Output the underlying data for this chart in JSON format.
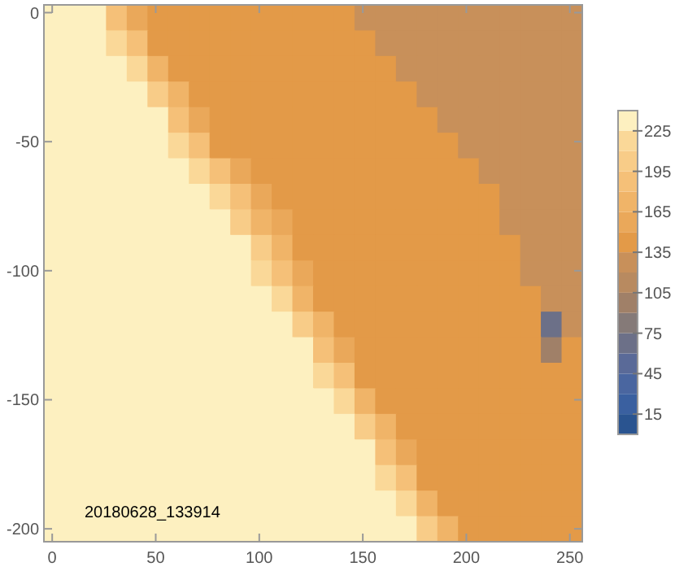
{
  "chart_data": {
    "type": "heatmap",
    "annotations": [
      "20180628_133914"
    ],
    "xlim": [
      -4,
      256
    ],
    "ylim": [
      -205,
      3
    ],
    "xticks": [
      0,
      50,
      100,
      150,
      200,
      250
    ],
    "yticks": [
      0,
      -50,
      -100,
      -150,
      -200
    ],
    "clim": [
      0,
      240
    ],
    "cticks": [
      15,
      45,
      75,
      105,
      135,
      165,
      195,
      225
    ],
    "cells": [
      [
        235,
        235,
        235,
        190,
        150,
        142,
        142,
        142,
        142,
        142,
        142,
        142,
        142,
        142,
        142,
        128,
        128,
        128,
        128,
        128,
        128,
        128,
        128,
        128,
        128,
        128
      ],
      [
        235,
        235,
        235,
        220,
        180,
        148,
        142,
        142,
        142,
        142,
        142,
        142,
        142,
        142,
        142,
        142,
        128,
        128,
        128,
        128,
        128,
        128,
        128,
        128,
        128,
        128
      ],
      [
        235,
        235,
        235,
        235,
        210,
        170,
        145,
        142,
        142,
        142,
        142,
        142,
        142,
        142,
        142,
        142,
        142,
        128,
        128,
        128,
        128,
        128,
        128,
        128,
        128,
        128
      ],
      [
        235,
        235,
        235,
        235,
        235,
        200,
        165,
        145,
        142,
        142,
        142,
        142,
        142,
        142,
        142,
        142,
        142,
        142,
        128,
        128,
        128,
        128,
        128,
        128,
        128,
        128
      ],
      [
        235,
        235,
        235,
        235,
        235,
        235,
        190,
        155,
        145,
        142,
        142,
        142,
        142,
        142,
        142,
        142,
        142,
        142,
        142,
        128,
        128,
        128,
        128,
        128,
        128,
        128
      ],
      [
        235,
        235,
        235,
        235,
        235,
        235,
        220,
        185,
        148,
        145,
        142,
        142,
        142,
        142,
        142,
        142,
        142,
        142,
        142,
        142,
        128,
        128,
        128,
        128,
        128,
        128
      ],
      [
        235,
        235,
        235,
        235,
        235,
        235,
        235,
        215,
        185,
        155,
        145,
        142,
        142,
        142,
        142,
        142,
        142,
        142,
        142,
        142,
        142,
        128,
        128,
        128,
        128,
        128
      ],
      [
        235,
        235,
        235,
        235,
        235,
        235,
        235,
        235,
        210,
        180,
        150,
        145,
        142,
        142,
        142,
        142,
        142,
        142,
        142,
        142,
        142,
        142,
        128,
        128,
        128,
        128
      ],
      [
        235,
        235,
        235,
        235,
        235,
        235,
        235,
        235,
        235,
        200,
        170,
        150,
        145,
        142,
        142,
        142,
        142,
        142,
        142,
        142,
        142,
        142,
        128,
        128,
        128,
        128
      ],
      [
        235,
        235,
        235,
        235,
        235,
        235,
        235,
        235,
        235,
        228,
        195,
        165,
        148,
        145,
        142,
        142,
        142,
        142,
        142,
        142,
        142,
        142,
        142,
        128,
        128,
        128
      ],
      [
        235,
        235,
        235,
        235,
        235,
        235,
        235,
        235,
        235,
        235,
        220,
        190,
        160,
        146,
        142,
        142,
        142,
        142,
        142,
        142,
        142,
        142,
        142,
        128,
        128,
        128
      ],
      [
        235,
        235,
        235,
        235,
        235,
        235,
        235,
        235,
        235,
        235,
        235,
        210,
        175,
        147,
        144,
        142,
        142,
        142,
        142,
        142,
        142,
        142,
        142,
        142,
        128,
        128
      ],
      [
        235,
        235,
        235,
        235,
        235,
        235,
        235,
        235,
        235,
        235,
        235,
        235,
        200,
        165,
        148,
        142,
        142,
        142,
        142,
        142,
        142,
        142,
        142,
        142,
        70,
        128
      ],
      [
        235,
        235,
        235,
        235,
        235,
        235,
        235,
        235,
        235,
        235,
        235,
        235,
        235,
        190,
        150,
        142,
        142,
        142,
        142,
        142,
        142,
        142,
        142,
        142,
        100,
        142
      ],
      [
        235,
        235,
        235,
        235,
        235,
        235,
        235,
        235,
        235,
        235,
        235,
        235,
        235,
        220,
        180,
        145,
        142,
        142,
        142,
        142,
        142,
        142,
        142,
        142,
        142,
        142
      ],
      [
        235,
        235,
        235,
        235,
        235,
        235,
        235,
        235,
        235,
        235,
        235,
        235,
        235,
        235,
        210,
        170,
        145,
        142,
        142,
        142,
        142,
        142,
        142,
        142,
        142,
        142
      ],
      [
        235,
        235,
        235,
        235,
        235,
        235,
        235,
        235,
        235,
        235,
        235,
        235,
        235,
        235,
        235,
        200,
        165,
        145,
        142,
        142,
        142,
        142,
        142,
        142,
        142,
        142
      ],
      [
        235,
        235,
        235,
        235,
        235,
        235,
        235,
        235,
        235,
        235,
        235,
        235,
        235,
        235,
        235,
        235,
        190,
        155,
        145,
        142,
        142,
        142,
        142,
        142,
        142,
        142
      ],
      [
        235,
        235,
        235,
        235,
        235,
        235,
        235,
        235,
        235,
        235,
        235,
        235,
        235,
        235,
        235,
        235,
        220,
        185,
        148,
        142,
        142,
        142,
        142,
        142,
        142,
        142
      ],
      [
        235,
        235,
        235,
        235,
        235,
        235,
        235,
        235,
        235,
        235,
        235,
        235,
        235,
        235,
        235,
        235,
        235,
        215,
        175,
        145,
        142,
        142,
        142,
        142,
        142,
        142
      ],
      [
        235,
        235,
        235,
        235,
        235,
        235,
        235,
        235,
        235,
        235,
        235,
        235,
        235,
        235,
        235,
        235,
        235,
        235,
        205,
        165,
        142,
        142,
        142,
        142,
        142,
        142
      ]
    ]
  }
}
